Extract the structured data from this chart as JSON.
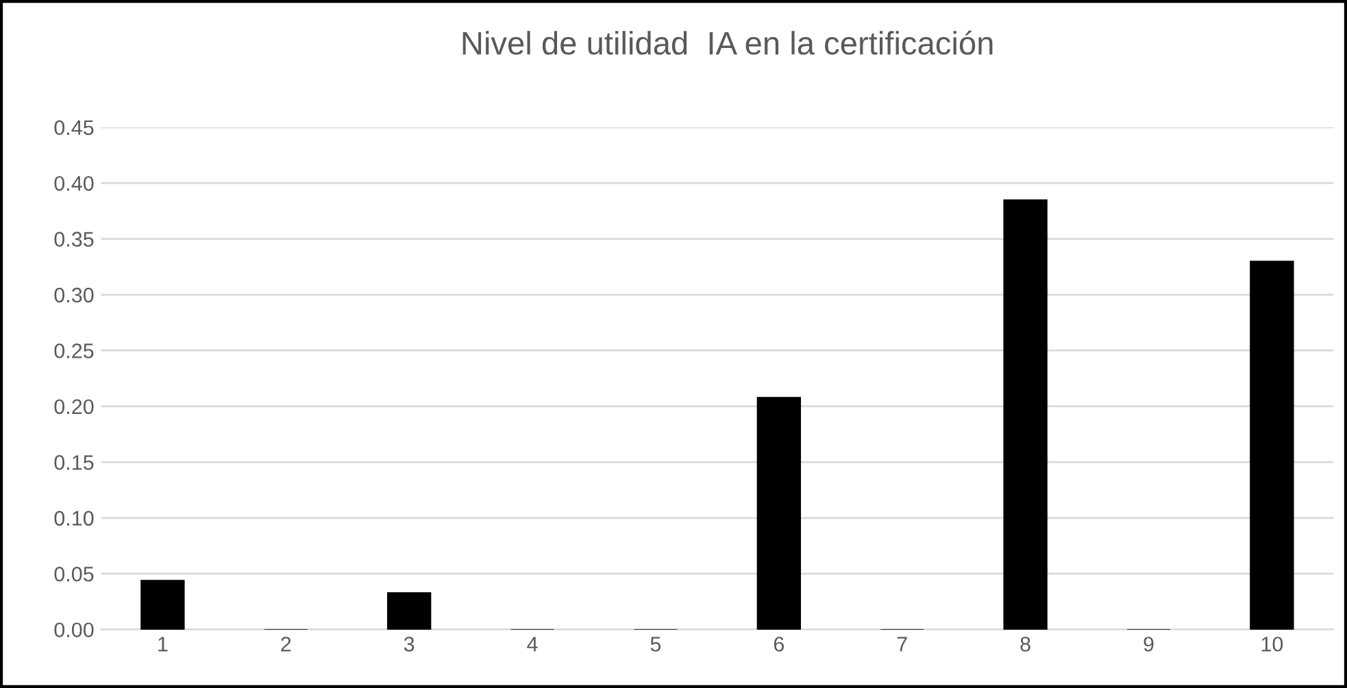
{
  "chart_data": {
    "type": "bar",
    "title": "Nivel de utilidad  IA en la certificación",
    "categories": [
      "1",
      "2",
      "3",
      "4",
      "5",
      "6",
      "7",
      "8",
      "9",
      "10"
    ],
    "values": [
      0.044,
      0,
      0.033,
      0,
      0,
      0.208,
      0,
      0.385,
      0,
      0.33
    ],
    "color": "#000000",
    "ylim": [
      0,
      0.45
    ],
    "yticks": [
      {
        "value": 0,
        "label": "0.00"
      },
      {
        "value": 0.05,
        "label": "0.05"
      },
      {
        "value": 0.1,
        "label": "0.10"
      },
      {
        "value": 0.15,
        "label": "0.15"
      },
      {
        "value": 0.2,
        "label": "0.20"
      },
      {
        "value": 0.25,
        "label": "0.25"
      },
      {
        "value": 0.3,
        "label": "0.30"
      },
      {
        "value": 0.35,
        "label": "0.35"
      },
      {
        "value": 0.4,
        "label": "0.40"
      },
      {
        "value": 0.45,
        "label": "0.45"
      }
    ],
    "grid": "y"
  }
}
